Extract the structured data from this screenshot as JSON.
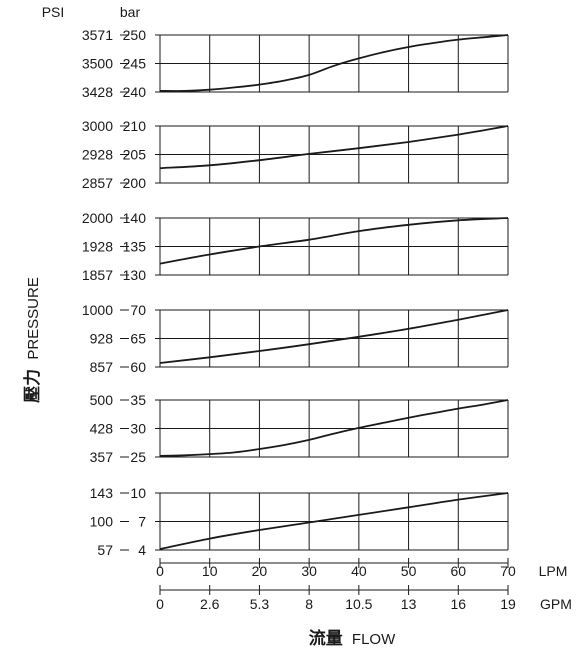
{
  "header": {
    "psi_label": "PSI",
    "bar_label": "bar"
  },
  "y_axis_title": {
    "cjk": "壓力",
    "en": "PRESSURE"
  },
  "x_axis_title": {
    "cjk": "流量",
    "en": "FLOW"
  },
  "x_axes": {
    "lpm_label": "LPM",
    "gpm_label": "GPM",
    "lpm_ticks": [
      "0",
      "10",
      "20",
      "30",
      "40",
      "50",
      "60",
      "70"
    ],
    "gpm_ticks": [
      "0",
      "2.6",
      "5.3",
      "8",
      "10.5",
      "13",
      "16",
      "19"
    ]
  },
  "colors": {
    "line": "#1a1a1a",
    "grid": "#1a1a1a"
  },
  "chart_data": [
    {
      "type": "line",
      "psi_ticks": [
        "3571",
        "3500",
        "3428"
      ],
      "bar_ticks": [
        "250",
        "245",
        "240"
      ],
      "ylim": [
        240,
        250
      ],
      "x": [
        0,
        5,
        10,
        15,
        20,
        25,
        30,
        35,
        40,
        45,
        50,
        55,
        60,
        65,
        70
      ],
      "values": [
        240.2,
        240.2,
        240.4,
        240.8,
        241.3,
        242.0,
        243.0,
        244.6,
        245.9,
        247.0,
        247.9,
        248.6,
        249.2,
        249.6,
        250.0
      ]
    },
    {
      "type": "line",
      "psi_ticks": [
        "3000",
        "2928",
        "2857"
      ],
      "bar_ticks": [
        "210",
        "205",
        "200"
      ],
      "ylim": [
        200,
        210
      ],
      "x": [
        0,
        10,
        20,
        30,
        40,
        50,
        60,
        70
      ],
      "values": [
        202.6,
        203.1,
        204.0,
        205.1,
        206.1,
        207.2,
        208.5,
        210.0
      ]
    },
    {
      "type": "line",
      "psi_ticks": [
        "2000",
        "1928",
        "1857"
      ],
      "bar_ticks": [
        "140",
        "135",
        "130"
      ],
      "ylim": [
        130,
        140
      ],
      "x": [
        0,
        10,
        20,
        30,
        40,
        50,
        60,
        70
      ],
      "values": [
        132.0,
        133.6,
        135.0,
        136.2,
        137.7,
        138.8,
        139.6,
        140.0
      ]
    },
    {
      "type": "line",
      "psi_ticks": [
        "1000",
        "928",
        "857"
      ],
      "bar_ticks": [
        "70",
        "65",
        "60"
      ],
      "ylim": [
        60,
        70
      ],
      "x": [
        0,
        10,
        20,
        30,
        40,
        50,
        60,
        70
      ],
      "values": [
        60.7,
        61.7,
        62.8,
        64.0,
        65.3,
        66.7,
        68.3,
        70.0
      ]
    },
    {
      "type": "line",
      "psi_ticks": [
        "500",
        "428",
        "357"
      ],
      "bar_ticks": [
        "35",
        "30",
        "25"
      ],
      "ylim": [
        25,
        35
      ],
      "x": [
        0,
        5,
        10,
        15,
        20,
        25,
        30,
        35,
        40,
        45,
        50,
        55,
        60,
        65,
        70
      ],
      "values": [
        25.2,
        25.3,
        25.5,
        25.8,
        26.4,
        27.1,
        28.0,
        29.1,
        30.1,
        31.0,
        31.9,
        32.7,
        33.5,
        34.2,
        35.0
      ]
    },
    {
      "type": "line",
      "psi_ticks": [
        "143",
        "100",
        "57"
      ],
      "bar_ticks": [
        "10",
        "7",
        "4"
      ],
      "ylim": [
        4,
        10
      ],
      "x": [
        0,
        10,
        20,
        30,
        40,
        50,
        60,
        70
      ],
      "values": [
        4.1,
        5.2,
        6.1,
        6.9,
        7.7,
        8.5,
        9.3,
        10.0
      ]
    }
  ]
}
